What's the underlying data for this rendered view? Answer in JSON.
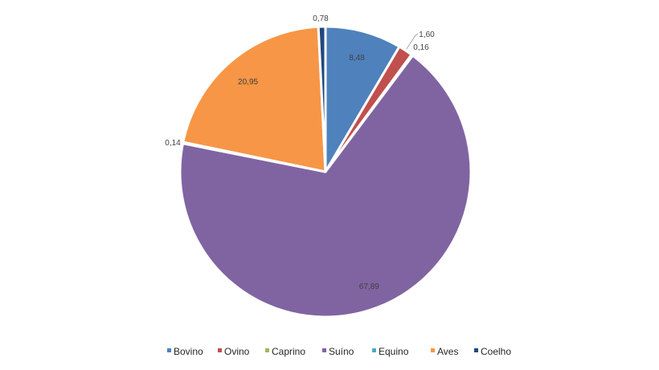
{
  "chart_data": {
    "type": "pie",
    "legend_position": "bottom",
    "slices": [
      {
        "name": "Bovino",
        "value": 8.48,
        "label": "8,48",
        "color": "#4f81bd"
      },
      {
        "name": "Ovino",
        "value": 1.6,
        "label": "1,60",
        "color": "#c0504d"
      },
      {
        "name": "Caprino",
        "value": 0.16,
        "label": "0,16",
        "color": "#9bbb59"
      },
      {
        "name": "Suíno",
        "value": 67.89,
        "label": "67,89",
        "color": "#8064a2"
      },
      {
        "name": "Equino",
        "value": 0.14,
        "label": "0,14",
        "color": "#4bacc6"
      },
      {
        "name": "Aves",
        "value": 20.95,
        "label": "20,95",
        "color": "#f79646"
      },
      {
        "name": "Coelho",
        "value": 0.78,
        "label": "0,78",
        "color": "#1f497d"
      }
    ]
  }
}
